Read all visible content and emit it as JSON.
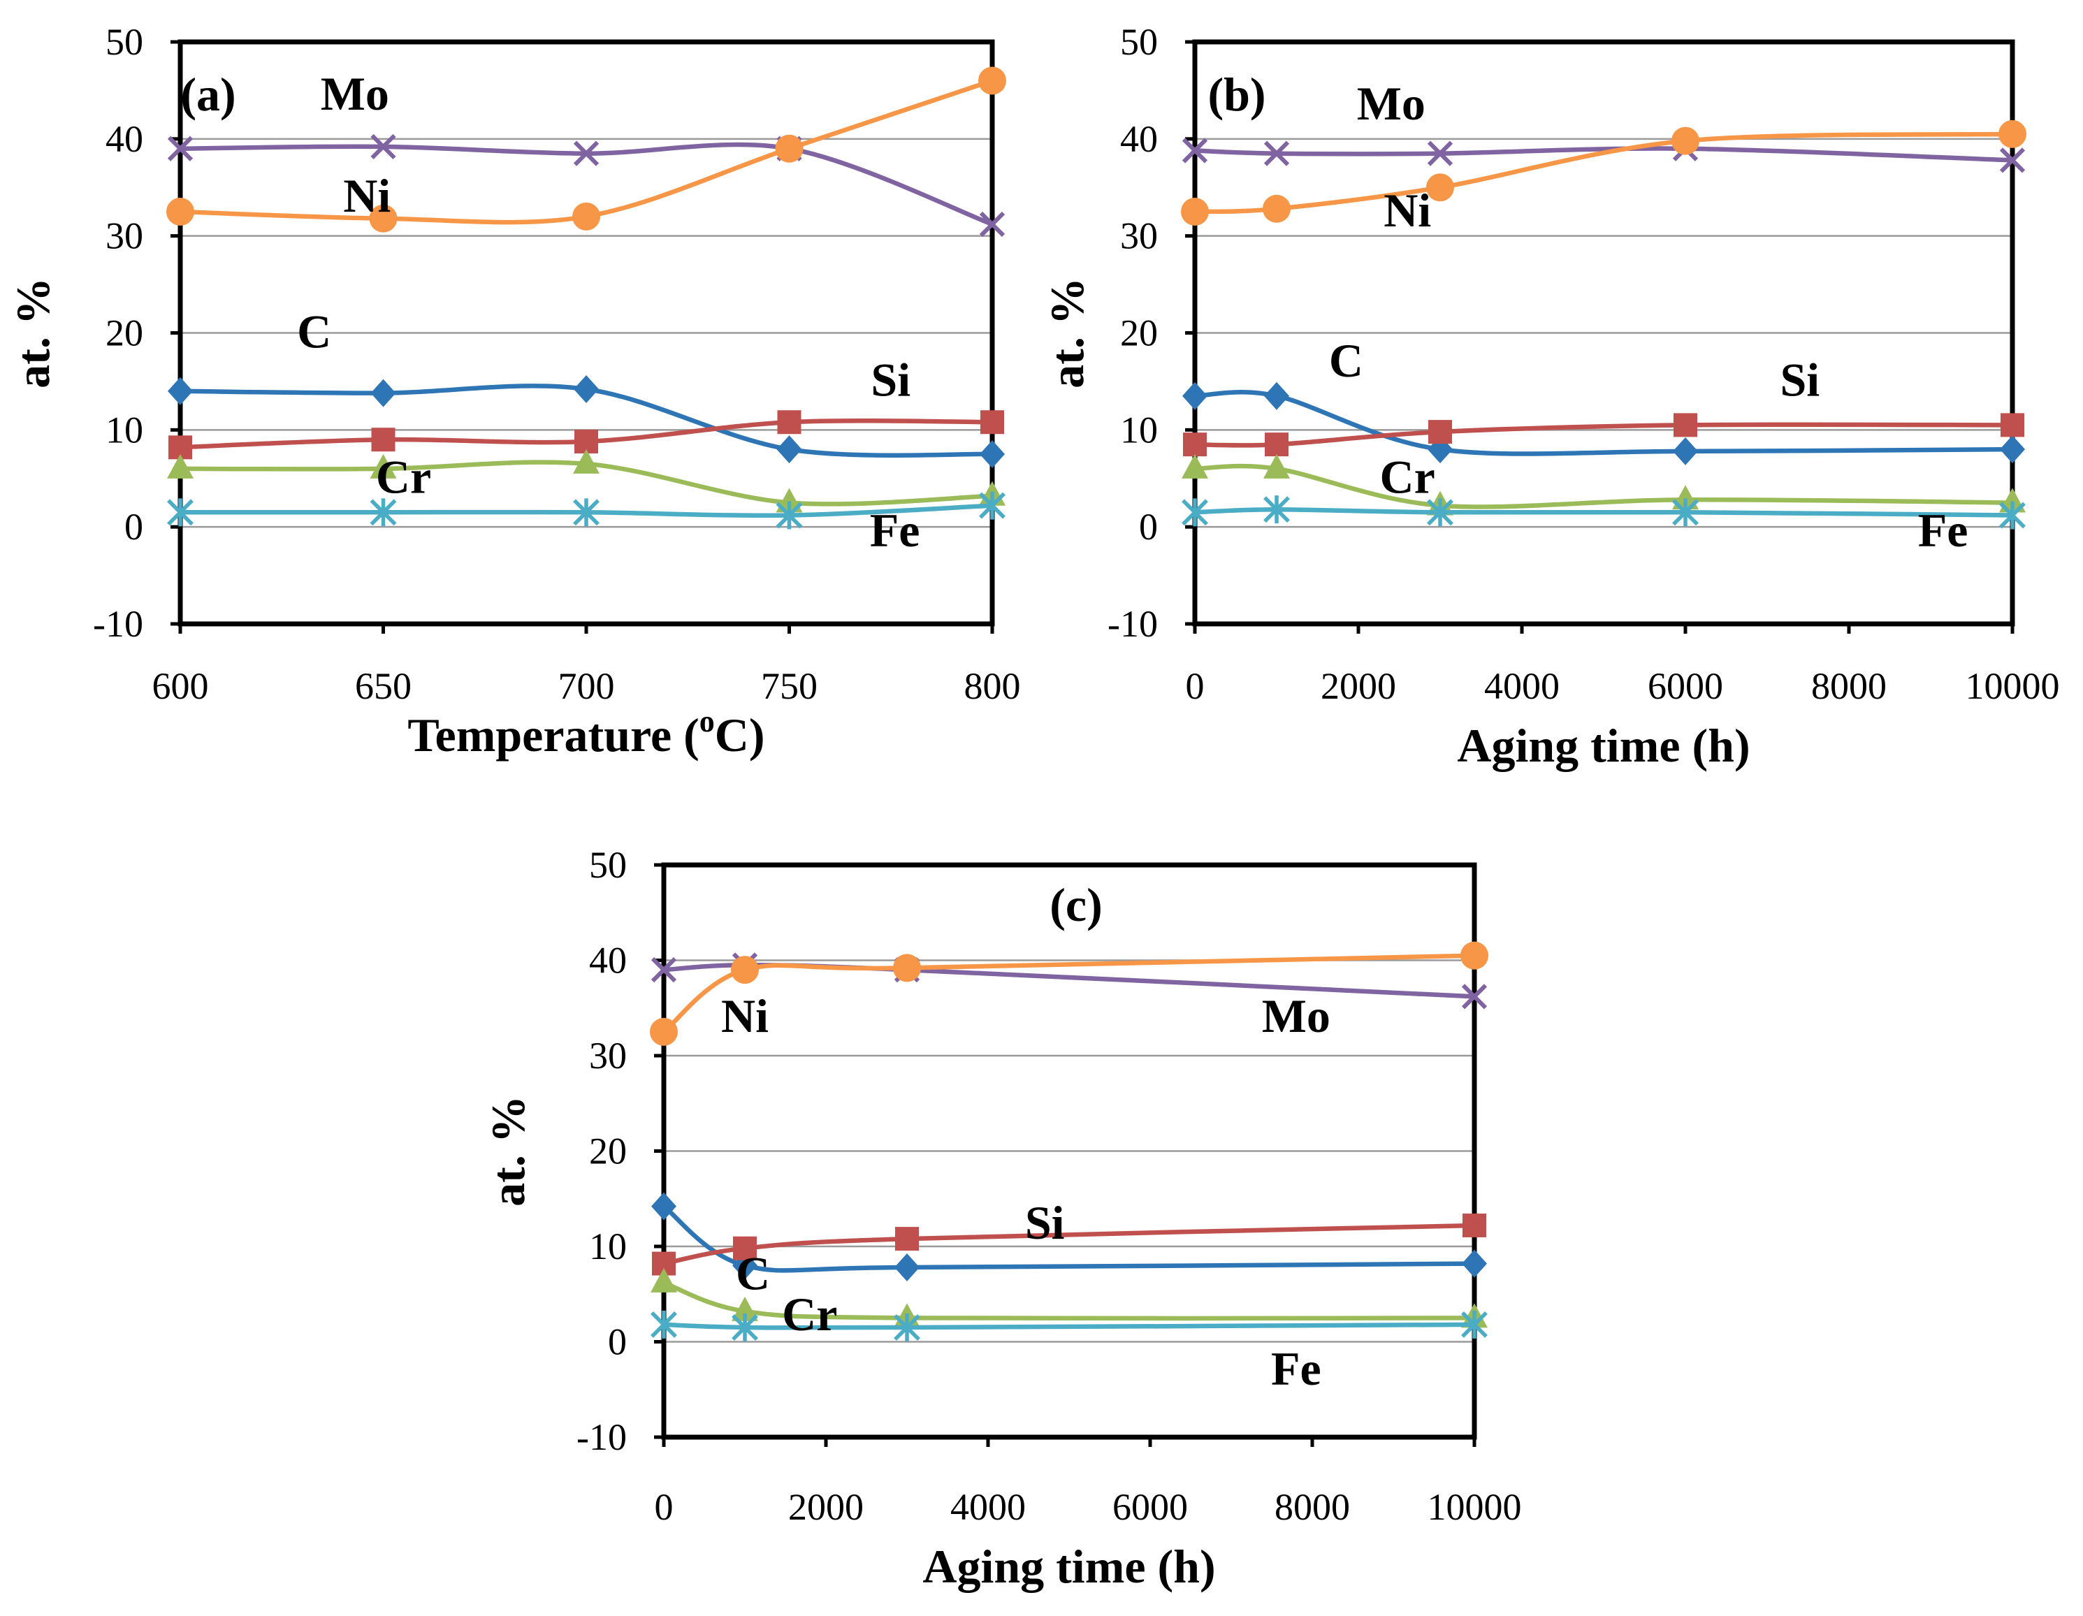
{
  "chart_data": [
    {
      "type": "line",
      "panel_label": "(a)",
      "xlabel_main": "Temperature (",
      "xlabel_sup": "o",
      "xlabel_end": "C)",
      "ylabel": "at. %",
      "xlim": [
        600,
        800
      ],
      "ylim": [
        -10,
        50
      ],
      "xticks": [
        600,
        650,
        700,
        750,
        800
      ],
      "yticks": [
        -10,
        0,
        10,
        20,
        30,
        40,
        50
      ],
      "x": [
        600,
        650,
        700,
        750,
        800
      ],
      "series": [
        {
          "name": "Mo",
          "color": "#8064a2",
          "marker": "x",
          "values": [
            39.0,
            39.2,
            38.5,
            39.0,
            31.2
          ],
          "label_at": [
            643,
            43
          ]
        },
        {
          "name": "Ni",
          "color": "#f79646",
          "marker": "circle",
          "values": [
            32.5,
            31.8,
            32.0,
            39.0,
            46.0
          ],
          "label_at": [
            646,
            32.5
          ]
        },
        {
          "name": "C",
          "color": "#2e75b6",
          "marker": "diamond",
          "values": [
            14.0,
            13.8,
            14.2,
            8.0,
            7.5
          ],
          "label_at": [
            633,
            18.5
          ]
        },
        {
          "name": "Si",
          "color": "#c0504d",
          "marker": "square",
          "values": [
            8.2,
            9.0,
            8.8,
            10.8,
            10.8
          ],
          "label_at": [
            775,
            13.5
          ]
        },
        {
          "name": "Cr",
          "color": "#9bbb59",
          "marker": "triangle",
          "values": [
            6.0,
            6.0,
            6.5,
            2.5,
            3.2
          ],
          "label_at": [
            655,
            3.5
          ]
        },
        {
          "name": "Fe",
          "color": "#4bacc6",
          "marker": "asterisk",
          "values": [
            1.5,
            1.5,
            1.5,
            1.2,
            2.2
          ],
          "label_at": [
            776,
            -2.0
          ]
        }
      ]
    },
    {
      "type": "line",
      "panel_label": "(b)",
      "xlabel": "Aging time (h)",
      "ylabel": "at. %",
      "xlim": [
        0,
        10000
      ],
      "ylim": [
        -10,
        50
      ],
      "xticks": [
        0,
        2000,
        4000,
        6000,
        8000,
        10000
      ],
      "yticks": [
        -10,
        0,
        10,
        20,
        30,
        40,
        50
      ],
      "x": [
        0,
        1000,
        3000,
        6000,
        10000
      ],
      "series": [
        {
          "name": "Mo",
          "color": "#8064a2",
          "marker": "x",
          "values": [
            38.8,
            38.5,
            38.5,
            39.0,
            37.8
          ],
          "label_at": [
            2400,
            42.0
          ]
        },
        {
          "name": "Ni",
          "color": "#f79646",
          "marker": "circle",
          "values": [
            32.5,
            32.8,
            35.0,
            39.8,
            40.5
          ],
          "label_at": [
            2600,
            31.0
          ]
        },
        {
          "name": "C",
          "color": "#2e75b6",
          "marker": "diamond",
          "values": [
            13.5,
            13.5,
            8.0,
            7.8,
            8.0
          ],
          "label_at": [
            1850,
            15.5
          ]
        },
        {
          "name": "Si",
          "color": "#c0504d",
          "marker": "square",
          "values": [
            8.5,
            8.5,
            9.8,
            10.5,
            10.5
          ],
          "label_at": [
            7400,
            13.5
          ]
        },
        {
          "name": "Cr",
          "color": "#9bbb59",
          "marker": "triangle",
          "values": [
            6.0,
            6.0,
            2.2,
            2.8,
            2.5
          ],
          "label_at": [
            2600,
            3.5
          ]
        },
        {
          "name": "Fe",
          "color": "#4bacc6",
          "marker": "asterisk",
          "values": [
            1.5,
            1.8,
            1.5,
            1.5,
            1.2
          ],
          "label_at": [
            9150,
            -2.0
          ]
        }
      ]
    },
    {
      "type": "line",
      "panel_label": "(c)",
      "xlabel": "Aging time (h)",
      "ylabel": "at. %",
      "xlim": [
        0,
        10000
      ],
      "ylim": [
        -10,
        50
      ],
      "xticks": [
        0,
        2000,
        4000,
        6000,
        8000,
        10000
      ],
      "yticks": [
        -10,
        0,
        10,
        20,
        30,
        40,
        50
      ],
      "x": [
        0,
        1000,
        3000,
        10000
      ],
      "series": [
        {
          "name": "Mo",
          "color": "#8064a2",
          "marker": "x",
          "values": [
            39.0,
            39.5,
            39.0,
            36.2
          ],
          "label_at": [
            7800,
            32.5
          ]
        },
        {
          "name": "Ni",
          "color": "#f79646",
          "marker": "circle",
          "values": [
            32.5,
            39.0,
            39.2,
            40.5
          ],
          "label_at": [
            1000,
            32.5
          ]
        },
        {
          "name": "C",
          "color": "#2e75b6",
          "marker": "diamond",
          "values": [
            14.2,
            8.0,
            7.8,
            8.2
          ],
          "label_at": [
            1100,
            5.5
          ]
        },
        {
          "name": "Si",
          "color": "#c0504d",
          "marker": "square",
          "values": [
            8.2,
            9.8,
            10.8,
            12.2
          ],
          "label_at": [
            4700,
            10.8
          ]
        },
        {
          "name": "Cr",
          "color": "#9bbb59",
          "marker": "triangle",
          "values": [
            6.2,
            3.2,
            2.5,
            2.5
          ],
          "label_at": [
            1800,
            1.2
          ]
        },
        {
          "name": "Fe",
          "color": "#4bacc6",
          "marker": "asterisk",
          "values": [
            1.8,
            1.5,
            1.5,
            1.8
          ],
          "label_at": [
            7800,
            -4.5
          ]
        }
      ]
    }
  ]
}
